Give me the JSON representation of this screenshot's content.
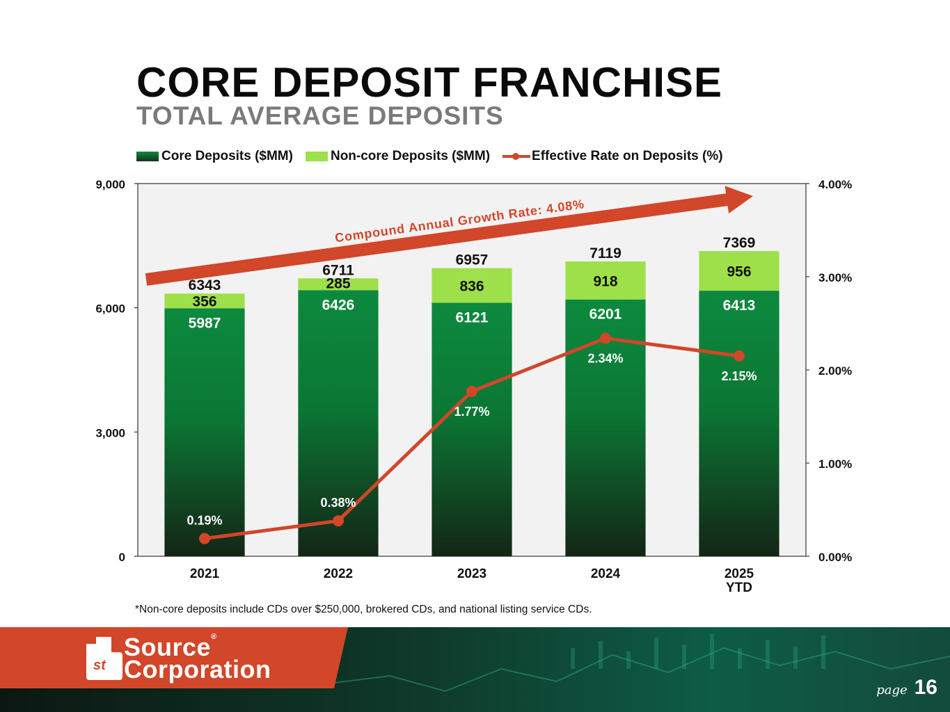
{
  "page": {
    "title": "CORE DEPOSIT FRANCHISE",
    "subtitle": "TOTAL AVERAGE DEPOSITS",
    "footnote": "*Non-core deposits include CDs over $250,000, brokered CDs, and national listing service CDs.",
    "page_label": "page",
    "page_number": "16"
  },
  "brand": {
    "logo_line1": "Source",
    "logo_line2": "Corporation",
    "logo_prefix": "st",
    "registered_mark": "®",
    "accent_color": "#d2462a",
    "core_color": "#0c8a3e",
    "noncore_color": "#9ee04a"
  },
  "chart_data": {
    "type": "bar",
    "stacked": true,
    "title": "TOTAL AVERAGE DEPOSITS",
    "categories": [
      "2021",
      "2022",
      "2023",
      "2024",
      "2025\nYTD"
    ],
    "series": [
      {
        "name": "Core Deposits ($MM)",
        "type": "bar",
        "values": [
          5987,
          6426,
          6121,
          6201,
          6413
        ]
      },
      {
        "name": "Non-core Deposits ($MM)",
        "type": "bar",
        "values": [
          356,
          285,
          836,
          918,
          956
        ]
      },
      {
        "name": "Effective Rate on Deposits (%)",
        "type": "line",
        "axis": "right",
        "values": [
          0.19,
          0.38,
          1.77,
          2.34,
          2.15
        ]
      }
    ],
    "totals": [
      6343,
      6711,
      6957,
      7119,
      7369
    ],
    "rate_labels": [
      "0.19%",
      "0.38%",
      "1.77%",
      "2.34%",
      "2.15%"
    ],
    "ylim": [
      0,
      9000
    ],
    "yticks": [
      "0",
      "3,000",
      "6,000",
      "9,000"
    ],
    "y2lim": [
      0,
      4
    ],
    "y2ticks": [
      "0.00%",
      "1.00%",
      "2.00%",
      "3.00%",
      "4.00%"
    ],
    "legend_position": "top",
    "grid": false,
    "annotation": "Compound Annual Growth Rate: 4.08%"
  }
}
